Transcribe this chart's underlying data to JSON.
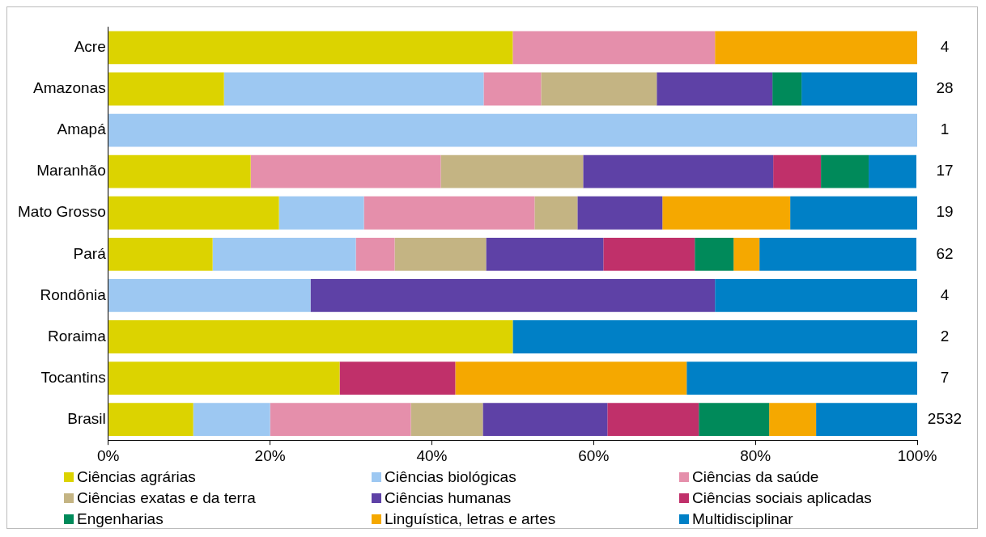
{
  "chart_data": {
    "type": "bar",
    "orientation": "horizontal",
    "stacked": true,
    "categories": [
      "Acre",
      "Amazonas",
      "Amapá",
      "Maranhão",
      "Mato Grosso",
      "Pará",
      "Rondônia",
      "Roraima",
      "Tocantins",
      "Brasil"
    ],
    "series": [
      {
        "name": "Ciências agrárias",
        "color": "#dcd300",
        "values": [
          50,
          14.3,
          0,
          17.6,
          21.1,
          12.9,
          0,
          50,
          28.6,
          10.5
        ]
      },
      {
        "name": "Ciências biológicas",
        "color": "#9dc8f2",
        "values": [
          0,
          32.1,
          100,
          0,
          10.5,
          17.7,
          25,
          0,
          0,
          9.5
        ]
      },
      {
        "name": "Ciências da saúde",
        "color": "#e58fab",
        "values": [
          25,
          7.1,
          0,
          23.5,
          21.1,
          4.8,
          0,
          0,
          0,
          17.4
        ]
      },
      {
        "name": "Ciências exatas e da terra",
        "color": "#c4b483",
        "values": [
          0,
          14.3,
          0,
          17.6,
          5.3,
          11.3,
          0,
          0,
          0,
          8.9
        ]
      },
      {
        "name": "Ciências humanas",
        "color": "#5e41a6",
        "values": [
          0,
          14.3,
          0,
          23.5,
          10.5,
          14.5,
          50,
          0,
          0,
          15.4
        ]
      },
      {
        "name": "Ciências sociais aplicadas",
        "color": "#c0306a",
        "values": [
          0,
          0,
          0,
          5.9,
          0,
          11.3,
          0,
          0,
          14.3,
          11.3
        ]
      },
      {
        "name": "Engenharias",
        "color": "#008a5a",
        "values": [
          0,
          3.6,
          0,
          5.9,
          0,
          4.8,
          0,
          0,
          0,
          8.7
        ]
      },
      {
        "name": "Linguística, letras e artes",
        "color": "#f5a800",
        "values": [
          25,
          0,
          0,
          0,
          15.8,
          3.2,
          0,
          0,
          28.6,
          5.8
        ]
      },
      {
        "name": "Multidisciplinar",
        "color": "#0080c6",
        "values": [
          0,
          14.3,
          0,
          5.9,
          15.8,
          19.4,
          25,
          50,
          28.5,
          12.5
        ]
      }
    ],
    "xlim": [
      0,
      100
    ],
    "xticks": [
      {
        "value": 0,
        "label": "0%"
      },
      {
        "value": 20,
        "label": "20%"
      },
      {
        "value": 40,
        "label": "40%"
      },
      {
        "value": 60,
        "label": "60%"
      },
      {
        "value": 80,
        "label": "80%"
      },
      {
        "value": 100,
        "label": "100%"
      }
    ],
    "annotations": [
      "4",
      "28",
      "1",
      "17",
      "19",
      "62",
      "4",
      "2",
      "7",
      "2532"
    ],
    "grid": false,
    "legend": "bottom"
  }
}
